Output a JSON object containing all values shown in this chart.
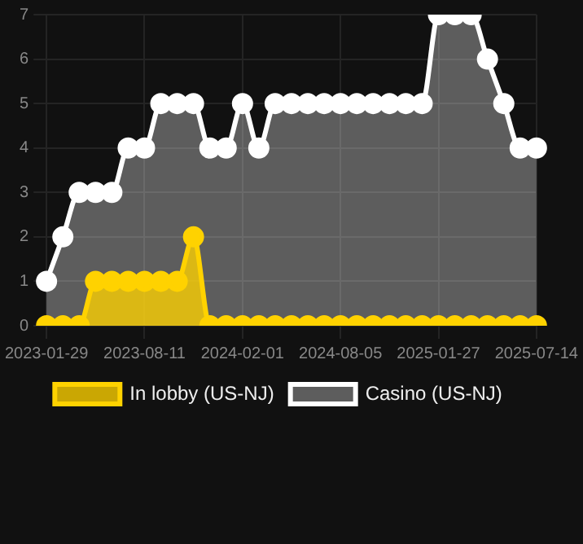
{
  "chart_data": {
    "type": "area",
    "categories": [
      "2023-01-29",
      null,
      null,
      null,
      null,
      null,
      "2023-08-11",
      null,
      null,
      null,
      null,
      null,
      "2024-02-01",
      null,
      null,
      null,
      null,
      null,
      "2024-08-05",
      null,
      null,
      null,
      null,
      null,
      "2025-01-27",
      null,
      null,
      null,
      null,
      null,
      "2025-07-14"
    ],
    "series": [
      {
        "name": "In lobby (US-NJ)",
        "color": "#ffd200",
        "values": [
          0,
          0,
          0,
          1,
          1,
          1,
          1,
          1,
          1,
          2,
          0,
          0,
          0,
          0,
          0,
          0,
          0,
          0,
          0,
          0,
          0,
          0,
          0,
          0,
          0,
          0,
          0,
          0,
          0,
          0,
          0
        ]
      },
      {
        "name": "Casino (US-NJ)",
        "color": "#ffffff",
        "values": [
          1,
          2,
          3,
          3,
          3,
          4,
          4,
          5,
          5,
          5,
          4,
          4,
          5,
          4,
          5,
          5,
          5,
          5,
          5,
          5,
          5,
          5,
          5,
          5,
          7,
          7,
          7,
          6,
          5,
          4,
          4
        ]
      }
    ],
    "ylim": [
      0,
      7
    ],
    "yticks": [
      0,
      1,
      2,
      3,
      4,
      5,
      6,
      7
    ],
    "grid": true,
    "legend": "bottom",
    "marker": "circle"
  }
}
